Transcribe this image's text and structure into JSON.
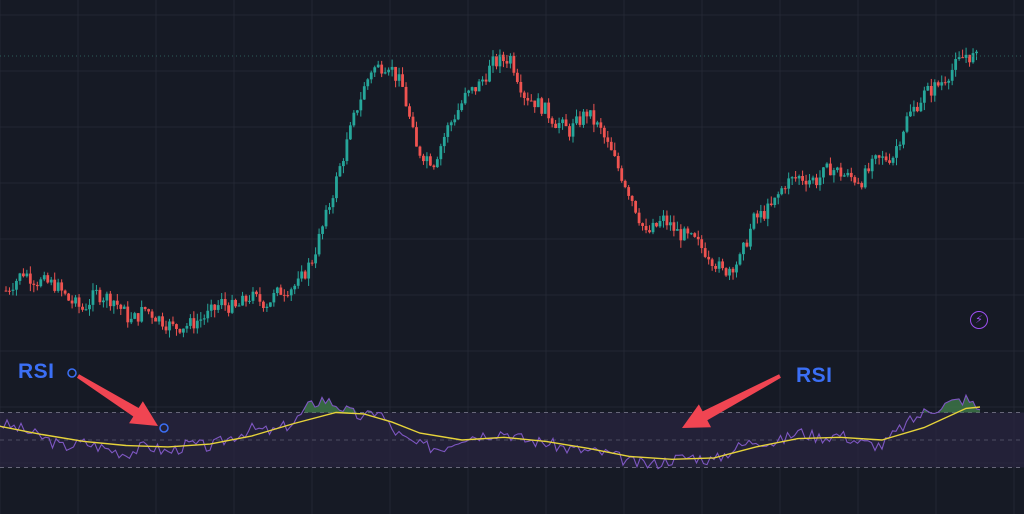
{
  "annotations": {
    "left_label": "RSI",
    "right_label": "RSI"
  },
  "colors": {
    "background": "#161a25",
    "grid": "#232733",
    "up_candle": "#26a69a",
    "down_candle": "#ef5350",
    "rsi_line": "#7e57c2",
    "rsi_ma_line": "#e6d33a",
    "rsi_band_fill": "#2a2540",
    "overbought_fill": "#3f7a4a",
    "arrow": "#f04552",
    "annotation_text": "#3b6ff5"
  },
  "icons": {
    "replay": "lightning-bolt-icon"
  },
  "chart_data": [
    {
      "type": "candlestick",
      "title": "",
      "xlabel": "",
      "ylabel": "",
      "grid": true,
      "close_path": [
        [
          0,
          0.2
        ],
        [
          5,
          0.26
        ],
        [
          9,
          0.23
        ],
        [
          14,
          0.22
        ],
        [
          18,
          0.17
        ],
        [
          22,
          0.14
        ],
        [
          26,
          0.19
        ],
        [
          31,
          0.17
        ],
        [
          36,
          0.1
        ],
        [
          40,
          0.14
        ],
        [
          44,
          0.11
        ],
        [
          48,
          0.08
        ],
        [
          53,
          0.09
        ],
        [
          58,
          0.12
        ],
        [
          62,
          0.16
        ],
        [
          66,
          0.14
        ],
        [
          70,
          0.18
        ],
        [
          75,
          0.16
        ],
        [
          79,
          0.2
        ],
        [
          84,
          0.22
        ],
        [
          88,
          0.3
        ],
        [
          92,
          0.44
        ],
        [
          96,
          0.6
        ],
        [
          101,
          0.8
        ],
        [
          105,
          0.92
        ],
        [
          110,
          0.94
        ],
        [
          114,
          0.86
        ],
        [
          118,
          0.66
        ],
        [
          123,
          0.62
        ],
        [
          127,
          0.73
        ],
        [
          132,
          0.83
        ],
        [
          136,
          0.87
        ],
        [
          140,
          0.94
        ],
        [
          145,
          0.96
        ],
        [
          149,
          0.84
        ],
        [
          154,
          0.8
        ],
        [
          158,
          0.75
        ],
        [
          162,
          0.72
        ],
        [
          167,
          0.78
        ],
        [
          171,
          0.72
        ],
        [
          176,
          0.6
        ],
        [
          180,
          0.5
        ],
        [
          184,
          0.38
        ],
        [
          189,
          0.43
        ],
        [
          193,
          0.39
        ],
        [
          198,
          0.36
        ],
        [
          202,
          0.32
        ],
        [
          206,
          0.26
        ],
        [
          211,
          0.3
        ],
        [
          215,
          0.43
        ],
        [
          220,
          0.47
        ],
        [
          224,
          0.55
        ],
        [
          228,
          0.57
        ],
        [
          233,
          0.56
        ],
        [
          237,
          0.6
        ],
        [
          242,
          0.57
        ],
        [
          246,
          0.56
        ],
        [
          250,
          0.62
        ],
        [
          255,
          0.64
        ],
        [
          259,
          0.76
        ],
        [
          264,
          0.84
        ],
        [
          268,
          0.87
        ],
        [
          272,
          0.92
        ],
        [
          276,
          0.97
        ],
        [
          280,
          0.95
        ]
      ],
      "ohlc_sample": [
        {
          "o": 0.2,
          "h": 0.27,
          "l": 0.15,
          "c": 0.26
        },
        {
          "o": 0.26,
          "h": 0.29,
          "l": 0.2,
          "c": 0.23
        },
        {
          "o": 0.23,
          "h": 0.26,
          "l": 0.18,
          "c": 0.22
        }
      ]
    },
    {
      "type": "line",
      "title": "",
      "series": [
        {
          "values": [
            [
              0,
              62
            ],
            [
              6,
              58
            ],
            [
              12,
              52
            ],
            [
              18,
              45
            ],
            [
              24,
              48
            ],
            [
              30,
              44
            ],
            [
              36,
              40
            ],
            [
              42,
              46
            ],
            [
              48,
              41
            ],
            [
              54,
              47
            ],
            [
              60,
              45
            ],
            [
              66,
              52
            ],
            [
              72,
              58
            ],
            [
              78,
              56
            ],
            [
              84,
              63
            ],
            [
              88,
              74
            ],
            [
              92,
              80
            ],
            [
              96,
              76
            ],
            [
              100,
              70
            ],
            [
              104,
              66
            ],
            [
              108,
              72
            ],
            [
              112,
              58
            ],
            [
              116,
              50
            ],
            [
              120,
              46
            ],
            [
              126,
              44
            ],
            [
              132,
              52
            ],
            [
              138,
              54
            ],
            [
              144,
              56
            ],
            [
              150,
              50
            ],
            [
              156,
              48
            ],
            [
              162,
              44
            ],
            [
              168,
              42
            ],
            [
              174,
              40
            ],
            [
              180,
              34
            ],
            [
              186,
              32
            ],
            [
              192,
              36
            ],
            [
              198,
              38
            ],
            [
              204,
              35
            ],
            [
              210,
              44
            ],
            [
              216,
              50
            ],
            [
              222,
              48
            ],
            [
              228,
              56
            ],
            [
              234,
              52
            ],
            [
              240,
              54
            ],
            [
              246,
              48
            ],
            [
              252,
              46
            ],
            [
              258,
              60
            ],
            [
              264,
              70
            ],
            [
              270,
              76
            ],
            [
              276,
              80
            ],
            [
              280,
              72
            ]
          ]
        },
        {
          "values": [
            [
              0,
              60
            ],
            [
              12,
              54
            ],
            [
              24,
              49
            ],
            [
              36,
              46
            ],
            [
              48,
              45
            ],
            [
              60,
              47
            ],
            [
              72,
              53
            ],
            [
              84,
              62
            ],
            [
              96,
              70
            ],
            [
              104,
              69
            ],
            [
              112,
              63
            ],
            [
              120,
              55
            ],
            [
              132,
              50
            ],
            [
              144,
              52
            ],
            [
              156,
              49
            ],
            [
              168,
              44
            ],
            [
              180,
              38
            ],
            [
              192,
              36
            ],
            [
              204,
              37
            ],
            [
              216,
              45
            ],
            [
              228,
              51
            ],
            [
              240,
              52
            ],
            [
              252,
              50
            ],
            [
              264,
              59
            ],
            [
              276,
              73
            ],
            [
              280,
              74
            ]
          ]
        }
      ],
      "bands": {
        "upper": 70,
        "middle": 50,
        "lower": 30
      }
    }
  ]
}
